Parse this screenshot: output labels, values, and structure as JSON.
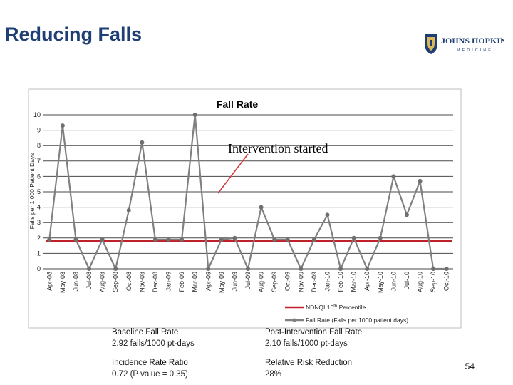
{
  "slide": {
    "title": "Reducing Falls",
    "page_number": "54",
    "logo": {
      "line1": "JOHNS HOPKINS",
      "line2": "MEDICINE"
    }
  },
  "stats": {
    "baseline": {
      "label": "Baseline Fall Rate",
      "value": "2.92 falls/1000 pt-days"
    },
    "post": {
      "label": "Post-Intervention Fall Rate",
      "value": "2.10 falls/1000 pt-days"
    },
    "irr": {
      "label": "Incidence Rate Ratio",
      "value": "0.72 (P value = 0.35)"
    },
    "rrr": {
      "label": "Relative Risk Reduction",
      "value": "28%"
    }
  },
  "chart_data": {
    "type": "line",
    "title": "Fall Rate",
    "ylabel": "Falls per 1,000 Patient Days",
    "xlabel": "",
    "ylim": [
      0,
      10
    ],
    "yticks": [
      0,
      1,
      2,
      3,
      4,
      5,
      6,
      7,
      8,
      9,
      10
    ],
    "grid": true,
    "categories": [
      "Apr-08",
      "May-08",
      "Jun-08",
      "Jul-08",
      "Aug-08",
      "Sep-08",
      "Oct-08",
      "Nov-08",
      "Dec-08",
      "Jan-09",
      "Feb-09",
      "Mar-09",
      "Apr-09",
      "May-09",
      "Jun-09",
      "Jul-09",
      "Aug-09",
      "Sep-09",
      "Oct-09",
      "Nov-09",
      "Dec-09",
      "Jan-10",
      "Feb-10",
      "Mar-10",
      "Apr-10",
      "May-10",
      "Jun-10",
      "Jul-10",
      "Aug-10",
      "Sep-10",
      "Oct-10"
    ],
    "series": [
      {
        "name": "Fall Rate (Falls per 1000 patient days)",
        "color": "#808080",
        "values": [
          1.9,
          9.3,
          1.9,
          0,
          1.9,
          0,
          3.8,
          8.2,
          1.9,
          1.9,
          1.9,
          10,
          0,
          1.9,
          2.0,
          0,
          4.0,
          1.9,
          1.9,
          0,
          1.9,
          3.5,
          0,
          2.0,
          0,
          2.0,
          6.0,
          3.5,
          5.7,
          0,
          0
        ]
      },
      {
        "name": "NDNQI 10th Percentile",
        "color": "#c0202a",
        "values": [
          1.8,
          1.8,
          1.8,
          1.8,
          1.8,
          1.8,
          1.8,
          1.8,
          1.8,
          1.8,
          1.8,
          1.8,
          1.8,
          1.8,
          1.8,
          1.8,
          1.8,
          1.8,
          1.8,
          1.8,
          1.8,
          1.8,
          1.8,
          1.8,
          1.8,
          1.8,
          1.8,
          1.8,
          1.8,
          1.8,
          1.8
        ]
      }
    ],
    "legend": [
      {
        "label": "NDNQI 10",
        "sup": "th",
        "suffix": " Percentile",
        "color": "#c0202a"
      },
      {
        "label": "Fall Rate (Falls per 1000 patient days)",
        "sup": "",
        "suffix": "",
        "color": "#808080"
      }
    ],
    "annotation": {
      "text": "Intervention started",
      "arrow_color": "#d23c3c"
    }
  }
}
